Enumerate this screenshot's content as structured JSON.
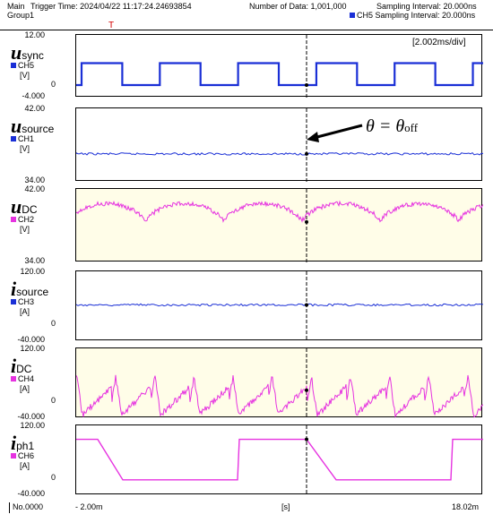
{
  "header": {
    "main": "Main",
    "group": "Group1",
    "trigger_time": "Trigger Time: 2024/04/22 11:17:24.24693854",
    "number_of_data": "Number of Data: 1,001,000",
    "sampling_interval": "Sampling Interval:  20.000ns",
    "ch5_sampling": "CH5 Sampling Interval:  20.000ns",
    "trigger_marker": "T"
  },
  "time_div": "[2.002ms/div]",
  "annotation": {
    "theta": "θ = θ",
    "sub": "off"
  },
  "channels": [
    {
      "sym": "u",
      "sub": "sync",
      "ch": "CH5",
      "unit": "[V]",
      "top": "12.00",
      "zero": "0",
      "bottom": "-4.000",
      "color": "#1a2fd6"
    },
    {
      "sym": "u",
      "sub": "source",
      "ch": "CH1",
      "unit": "[V]",
      "top": "42.00",
      "zero": "",
      "bottom": "34.00",
      "color": "#1a2fd6"
    },
    {
      "sym": "u",
      "sub": "DC",
      "ch": "CH2",
      "unit": "[V]",
      "top": "42.00",
      "zero": "",
      "bottom": "34.00",
      "color": "#e633e0"
    },
    {
      "sym": "i",
      "sub": "source",
      "ch": "CH3",
      "unit": "[A]",
      "top": "120.00",
      "zero": "0",
      "bottom": "-40.000",
      "color": "#1a2fd6"
    },
    {
      "sym": "i",
      "sub": "DC",
      "ch": "CH4",
      "unit": "[A]",
      "top": "120.00",
      "zero": "0",
      "bottom": "-40.000",
      "color": "#e633e0"
    },
    {
      "sym": "i",
      "sub": "ph1",
      "ch": "CH6",
      "unit": "[A]",
      "top": "120.00",
      "zero": "0",
      "bottom": "-40.000",
      "color": "#e633e0"
    }
  ],
  "footer": {
    "no": "No.0000",
    "start": "- 2.00m",
    "unit": "[s]",
    "end": "18.02m"
  }
}
